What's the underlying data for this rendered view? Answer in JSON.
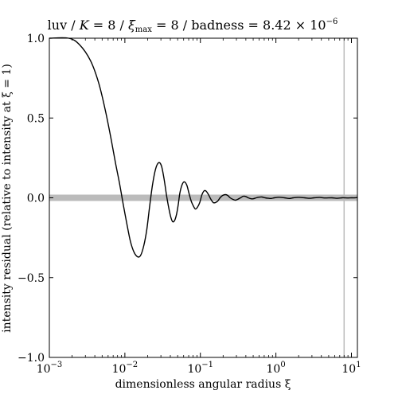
{
  "title": "luv / K = 8 / ξmax = 8 / badness = 8.42 × 10−6",
  "title_parts": {
    "a": "luv / ",
    "K": "K",
    "b": " = 8 / ",
    "xi": "ξ",
    "sub": "max",
    "c": " = 8 / badness = 8.42 × 10",
    "exp": "−6"
  },
  "chart_data": {
    "type": "line",
    "title": "luv / K = 8 / ξmax = 8 / badness = 8.42 × 10−6",
    "xlabel": "dimensionless angular radius ξ",
    "ylabel": "intensity residual (relative to intensity at ξ = 1)",
    "xscale": "log",
    "xlim": [
      0.001,
      12
    ],
    "ylim": [
      -1.0,
      1.0
    ],
    "x_ticks": [
      {
        "base": "10",
        "exp": "−3",
        "value": 0.001
      },
      {
        "base": "10",
        "exp": "−2",
        "value": 0.01
      },
      {
        "base": "10",
        "exp": "−1",
        "value": 0.1
      },
      {
        "base": "10",
        "exp": "0",
        "value": 1
      },
      {
        "base": "10",
        "exp": "1",
        "value": 10
      }
    ],
    "y_ticks": [
      "1.0",
      "0.5",
      "0.0",
      "−0.5",
      "−1.0"
    ],
    "y_tick_values": [
      1.0,
      0.5,
      0.0,
      -0.5,
      -1.0
    ],
    "zero_band": {
      "y": 0.0,
      "color": "#bbbbbb"
    },
    "vertical_line": {
      "x": 8,
      "color": "#bbbbbb"
    },
    "series": [
      {
        "color": "#000000",
        "x": [
          0.001,
          0.0018,
          0.0025,
          0.0035,
          0.0045,
          0.0055,
          0.0065,
          0.0075,
          0.0085,
          0.0095,
          0.0105,
          0.0118,
          0.0132,
          0.0148,
          0.0162,
          0.0178,
          0.0195,
          0.0212,
          0.0232,
          0.0255,
          0.028,
          0.0305,
          0.033,
          0.0355,
          0.038,
          0.0405,
          0.043,
          0.0458,
          0.0485,
          0.051,
          0.0535,
          0.057,
          0.061,
          0.066,
          0.0705,
          0.0755,
          0.0805,
          0.0858,
          0.0912,
          0.098,
          0.105,
          0.113,
          0.12,
          0.128,
          0.138,
          0.148,
          0.158,
          0.17,
          0.182,
          0.197,
          0.215,
          0.23,
          0.248,
          0.27,
          0.29,
          0.31,
          0.34,
          0.37,
          0.4,
          0.43,
          0.47,
          0.5,
          0.55,
          0.6,
          0.65,
          0.72,
          0.8,
          0.87,
          0.95,
          1.05,
          1.15,
          1.3,
          1.5,
          1.7,
          2.0,
          2.4,
          2.8,
          3.2,
          3.8,
          4.5,
          5.5,
          6.5,
          7.5,
          8.0,
          9.0,
          10.0,
          11.0,
          12.0
        ],
        "y": [
          1.0,
          1.0,
          0.96,
          0.86,
          0.72,
          0.55,
          0.38,
          0.22,
          0.09,
          -0.04,
          -0.15,
          -0.27,
          -0.34,
          -0.37,
          -0.36,
          -0.3,
          -0.2,
          -0.06,
          0.08,
          0.18,
          0.22,
          0.2,
          0.12,
          0.02,
          -0.06,
          -0.12,
          -0.15,
          -0.14,
          -0.1,
          -0.04,
          0.03,
          0.08,
          0.1,
          0.08,
          0.03,
          -0.02,
          -0.05,
          -0.07,
          -0.06,
          -0.03,
          0.02,
          0.045,
          0.04,
          0.02,
          -0.01,
          -0.03,
          -0.03,
          -0.02,
          0.0,
          0.015,
          0.02,
          0.015,
          0.0,
          -0.01,
          -0.015,
          -0.01,
          0.0,
          0.01,
          0.008,
          0.0,
          -0.006,
          -0.006,
          0.0,
          0.004,
          0.005,
          0.0,
          -0.003,
          -0.004,
          0.0,
          0.003,
          0.003,
          0.0,
          -0.004,
          0.0,
          0.003,
          0.0,
          -0.003,
          0.0,
          0.002,
          -0.001,
          0.0,
          -0.003,
          0.0,
          0.0,
          -0.001,
          0.0,
          0.0,
          0.002
        ]
      }
    ]
  }
}
